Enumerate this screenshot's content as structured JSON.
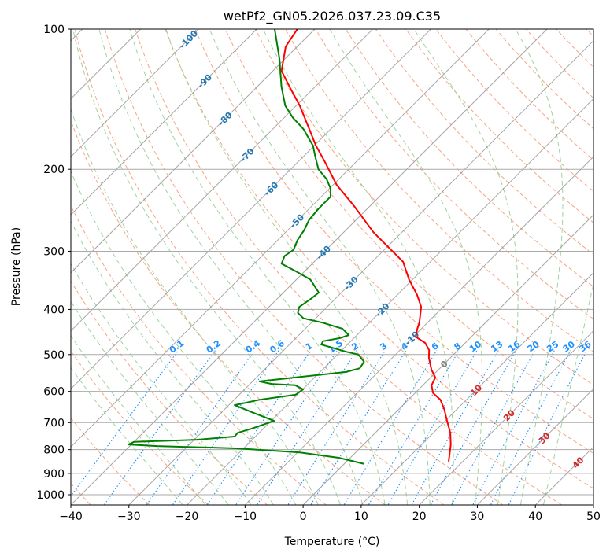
{
  "chart_data": {
    "type": "line",
    "subtype": "skew-t log-p",
    "title": "wetPf2_GN05.2026.037.23.09.C35",
    "xlabel": "Temperature (°C)",
    "ylabel": "Pressure (hPa)",
    "xlim": [
      -40,
      50
    ],
    "ylim": [
      1050,
      100
    ],
    "yscale": "log",
    "grid": true,
    "x_ticks": [
      "−40",
      "−30",
      "−20",
      "−10",
      "0",
      "10",
      "20",
      "30",
      "40",
      "50"
    ],
    "x_tick_values": [
      -40,
      -30,
      -20,
      -10,
      0,
      10,
      20,
      30,
      40,
      50
    ],
    "y_ticks": [
      "100",
      "200",
      "300",
      "400",
      "500",
      "600",
      "700",
      "800",
      "900",
      "1000"
    ],
    "y_tick_values": [
      100,
      200,
      300,
      400,
      500,
      600,
      700,
      800,
      900,
      1000
    ],
    "isotherm_labels": [
      "-100",
      "-90",
      "-80",
      "-70",
      "-60",
      "-50",
      "-40",
      "-30",
      "-20",
      "-10",
      "0",
      "10",
      "20",
      "30",
      "40"
    ],
    "isotherm_label_values": [
      -100,
      -90,
      -80,
      -70,
      -60,
      -50,
      -40,
      -30,
      -20,
      -10,
      0,
      10,
      20,
      30,
      40
    ],
    "mixing_ratio_labels": [
      "0.1",
      "0.2",
      "0.4",
      "0.6",
      "1",
      "1.5",
      "2",
      "3",
      "4",
      "6",
      "8",
      "10",
      "13",
      "16",
      "20",
      "25",
      "30",
      "36"
    ],
    "mixing_ratio_values": [
      0.1,
      0.2,
      0.4,
      0.6,
      1,
      1.5,
      2,
      3,
      4,
      6,
      8,
      10,
      13,
      16,
      20,
      25,
      30,
      36
    ],
    "colors": {
      "temperature": "#ff0000",
      "dewpoint": "#008000",
      "isotherm": "#888888",
      "dry_adiabat": "#f4a582",
      "moist_adiabat": "#9fd39f",
      "mixing_ratio": "#1e90ff",
      "label_cold": "#1f77b4",
      "label_zero": "#808080",
      "label_warm": "#d62728"
    },
    "series": [
      {
        "name": "Temperature",
        "pressure": [
          100,
          109,
          123,
          133,
          146,
          164,
          178,
          192,
          216,
          240,
          273,
          301,
          316,
          345,
          372,
          395,
          427,
          440,
          458,
          472,
          489,
          508,
          539,
          560,
          582,
          605,
          625,
          655,
          694,
          736,
          780,
          811,
          849
        ],
        "values": [
          -83.0,
          -82.0,
          -78.5,
          -74.4,
          -69.4,
          -63.7,
          -59.7,
          -55.6,
          -49.4,
          -42.7,
          -34.9,
          -28.1,
          -24.7,
          -20.6,
          -16.6,
          -13.8,
          -11.4,
          -10.7,
          -9.6,
          -6.9,
          -5.0,
          -3.7,
          -1.2,
          0.8,
          1.5,
          3.1,
          5.5,
          7.8,
          10.3,
          12.9,
          15.0,
          16.2,
          17.6
        ]
      },
      {
        "name": "Dewpoint",
        "pressure": [
          100,
          116,
          133,
          146,
          155,
          164,
          178,
          188,
          200,
          210,
          220,
          229,
          243,
          257,
          270,
          284,
          298,
          307,
          319,
          331,
          345,
          368,
          380,
          395,
          407,
          418,
          427,
          440,
          454,
          461,
          468,
          476,
          493,
          500,
          518,
          535,
          545,
          560,
          571,
          578,
          582,
          594,
          610,
          625,
          642,
          665,
          694,
          721,
          736,
          750,
          762,
          770,
          780,
          786,
          795,
          811,
          833,
          859
        ],
        "values": [
          -86.9,
          -80.9,
          -75.8,
          -71.9,
          -68.5,
          -64.7,
          -60.2,
          -57.9,
          -55.2,
          -52.1,
          -49.8,
          -48.4,
          -48.4,
          -48.1,
          -47.2,
          -46.6,
          -45.6,
          -46.1,
          -45.3,
          -41.6,
          -37.6,
          -33.9,
          -34.2,
          -34.8,
          -34.0,
          -32.1,
          -28.1,
          -23.6,
          -21.4,
          -22.4,
          -24.8,
          -24.5,
          -19.0,
          -16.4,
          -14.2,
          -13.8,
          -15.5,
          -23.3,
          -28.8,
          -26.3,
          -22.0,
          -19.9,
          -20.3,
          -25.6,
          -29.0,
          -24.8,
          -19.5,
          -22.0,
          -23.7,
          -23.6,
          -29.6,
          -40.0,
          -40.5,
          -35.3,
          -21.3,
          -9.8,
          -2.0,
          3.5
        ]
      }
    ]
  }
}
